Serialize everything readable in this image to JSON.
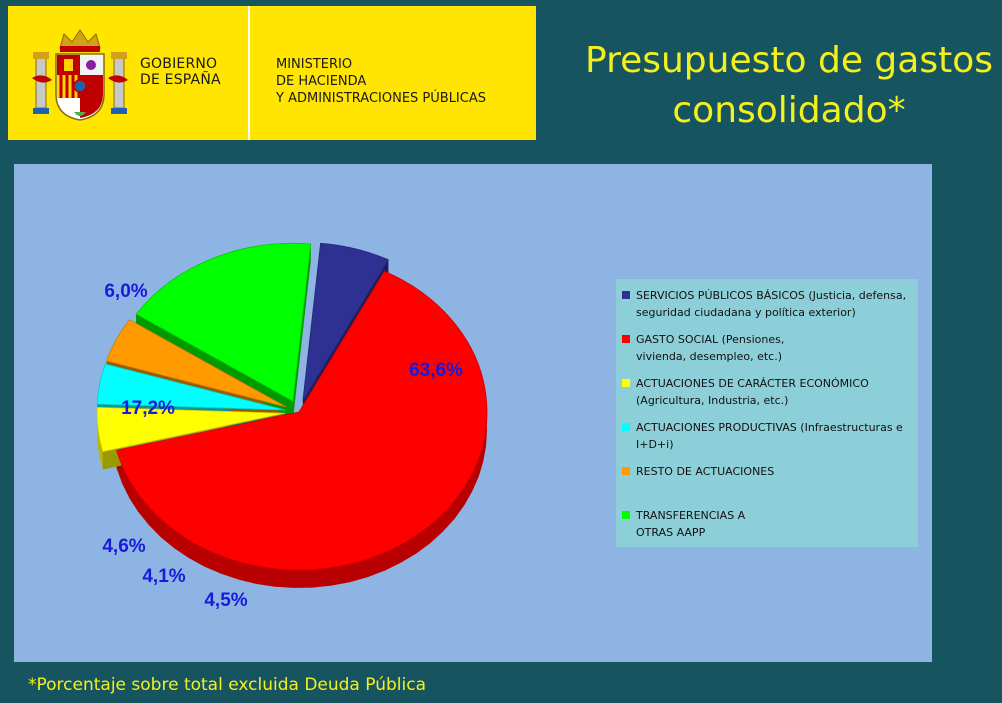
{
  "header": {
    "gov_line1": "GOBIERNO",
    "gov_line2": "DE ESPAÑA",
    "ministry_line1": "MINISTERIO",
    "ministry_line2": "DE HACIENDA",
    "ministry_line3": "Y ADMINISTRACIONES PÚBLICAS",
    "crest_icon": "spain-coat-of-arms-icon"
  },
  "title_line1": "Presupuesto de gastos",
  "title_line2": "consolidado*",
  "footnote": "*Porcentaje sobre total excluida Deuda Pública",
  "colors": {
    "background": "#165560",
    "header_band": "#ffe500",
    "title": "#f4f01e",
    "panel": "#8db4e3",
    "legend_bg": "#8dcfd8",
    "pct_label": "#1a1adc"
  },
  "chart_data": {
    "type": "pie",
    "legend_placement": "right",
    "slices": [
      {
        "label": "GASTO SOCIAL (Pensiones,\nvivienda, desempleo, etc.)",
        "value": 63.6,
        "value_text": "63,6%",
        "color": "#ff0000"
      },
      {
        "label": "ACTUACIONES DE CARÁCTER ECONÓMICO\n(Agricultura, Industria, etc.)",
        "value": 4.5,
        "value_text": "4,5%",
        "color": "#ffff00"
      },
      {
        "label": "ACTUACIONES PRODUCTIVAS (Infraestructuras e\nI+D+i)",
        "value": 4.1,
        "value_text": "4,1%",
        "color": "#00ffff"
      },
      {
        "label": "RESTO DE ACTUACIONES",
        "value": 4.6,
        "value_text": "4,6%",
        "color": "#ff9a00"
      },
      {
        "label": "TRANSFERENCIAS A\nOTRAS AAPP",
        "value": 17.2,
        "value_text": "17,2%",
        "color": "#00ff00"
      },
      {
        "label": "SERVICIOS PÚBLICOS BÁSICOS (Justicia, defensa,\nseguridad ciudadana y política exterior)",
        "value": 6.0,
        "value_text": "6,0%",
        "color": "#2e3192"
      }
    ],
    "legend_order": [
      5,
      0,
      1,
      2,
      3,
      4
    ]
  }
}
